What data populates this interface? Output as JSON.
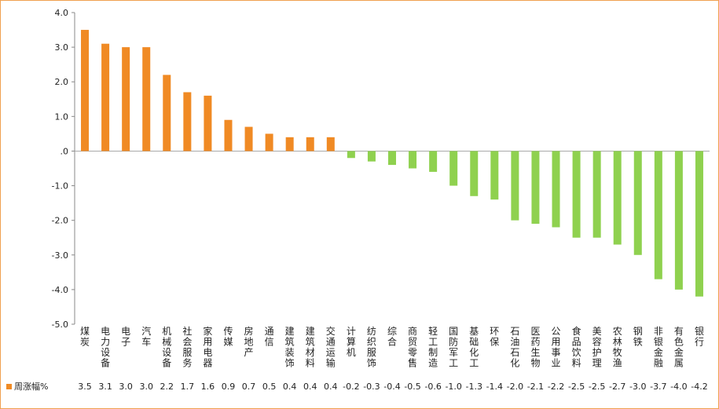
{
  "chart_data": {
    "type": "bar",
    "categories": [
      "煤炭",
      "电力设备",
      "电子",
      "汽车",
      "机械设备",
      "社会服务",
      "家用电器",
      "传媒",
      "房地产",
      "通信",
      "建筑装饰",
      "建筑材料",
      "交通运输",
      "计算机",
      "纺织服饰",
      "综合",
      "商贸零售",
      "轻工制造",
      "国防军工",
      "基础化工",
      "环保",
      "石油石化",
      "医药生物",
      "公用事业",
      "食品饮料",
      "美容护理",
      "农林牧渔",
      "钢铁",
      "非银金融",
      "有色金属",
      "银行"
    ],
    "series": [
      {
        "name": "周涨幅%",
        "values": [
          3.5,
          3.1,
          3.0,
          3.0,
          2.2,
          1.7,
          1.6,
          0.9,
          0.7,
          0.5,
          0.4,
          0.4,
          0.4,
          -0.2,
          -0.3,
          -0.4,
          -0.5,
          -0.6,
          -1.0,
          -1.3,
          -1.4,
          -2.0,
          -2.1,
          -2.2,
          -2.5,
          -2.5,
          -2.7,
          -3.0,
          -3.7,
          -4.0,
          -4.2
        ],
        "labels": [
          "3.5",
          "3.1",
          "3.0",
          "3.0",
          "2.2",
          "1.7",
          "1.6",
          "0.9",
          "0.7",
          "0.5",
          "0.4",
          "0.4",
          "0.4",
          "-0.2",
          "-0.3",
          "-0.4",
          "-0.5",
          "-0.6",
          "-1.0",
          "-1.3",
          "-1.4",
          "-2.0",
          "-2.1",
          "-2.2",
          "-2.5",
          "-2.5",
          "-2.7",
          "-3.0",
          "-3.7",
          "-4.0",
          "-4.2"
        ]
      }
    ],
    "y_ticks": [
      "4.0",
      "3.0",
      "2.0",
      "1.0",
      ".0",
      "-1.0",
      "-2.0",
      "-3.0",
      "-4.0",
      "-5.0"
    ],
    "ylim": [
      -5,
      4
    ],
    "positive_color": "#f08a24",
    "negative_color": "#8fd14f",
    "legend_position": "bottom-left",
    "grid": false
  }
}
